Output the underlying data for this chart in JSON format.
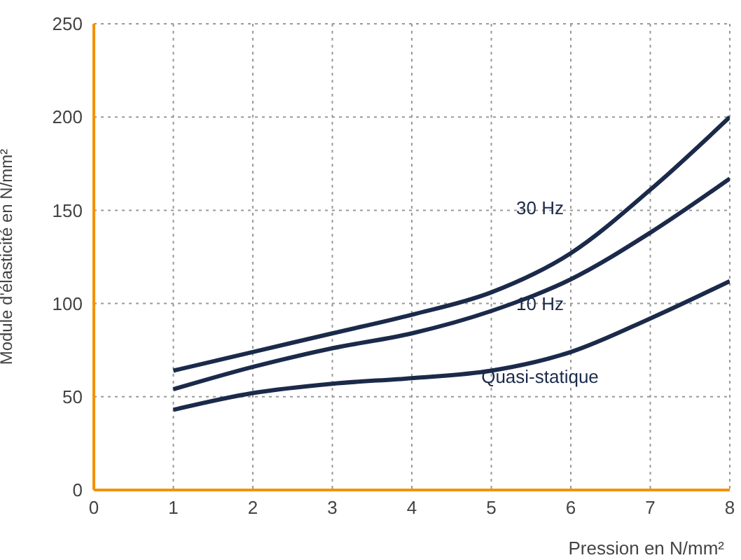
{
  "chart_data": {
    "type": "line",
    "xlabel": "Pression en N/mm²",
    "ylabel": "Module d'élasticité en N/mm²",
    "x": [
      1,
      2,
      3,
      4,
      5,
      6,
      7,
      8
    ],
    "series": [
      {
        "name": "30 Hz",
        "color": "#1b2a4a",
        "values": [
          64,
          74,
          84,
          94,
          106,
          127,
          161,
          200
        ]
      },
      {
        "name": "10 Hz",
        "color": "#1b2a4a",
        "values": [
          54,
          66,
          76,
          84,
          96,
          113,
          138,
          167
        ]
      },
      {
        "name": "Quasi-statique",
        "color": "#1b2a4a",
        "values": [
          43,
          52,
          57,
          60,
          64,
          74,
          92,
          112
        ]
      }
    ],
    "xlim": [
      0,
      8
    ],
    "xticks": [
      0,
      1,
      2,
      3,
      4,
      5,
      6,
      7,
      8
    ],
    "ylim": [
      0,
      250
    ],
    "yticks": [
      0,
      50,
      100,
      150,
      200,
      250
    ],
    "grid": true,
    "legend": false,
    "marker": "none",
    "line_style": "solid"
  }
}
